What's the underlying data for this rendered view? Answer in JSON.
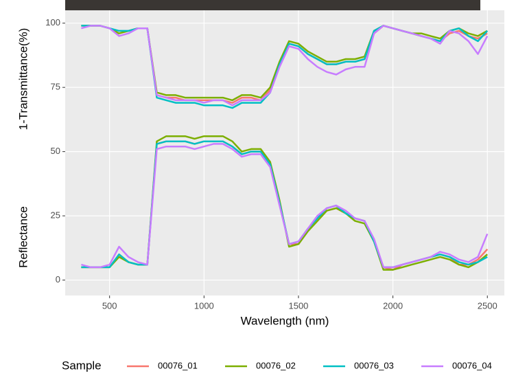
{
  "chart_data": {
    "type": "line",
    "xlabel": "Wavelength (nm)",
    "ylabels": [
      "1-Transmittance(%)",
      "Reflectance"
    ],
    "legend_title": "Sample",
    "legend_position": "bottom",
    "grid": true,
    "xlim": [
      265,
      2590
    ],
    "ylim": [
      -6,
      105
    ],
    "xticks": [
      500,
      1000,
      1500,
      2000,
      2500
    ],
    "yticks": [
      0,
      25,
      50,
      75,
      100
    ],
    "x": [
      350,
      400,
      450,
      500,
      550,
      600,
      650,
      700,
      750,
      800,
      850,
      900,
      950,
      1000,
      1050,
      1100,
      1150,
      1200,
      1250,
      1300,
      1350,
      1400,
      1450,
      1500,
      1550,
      1600,
      1650,
      1700,
      1750,
      1800,
      1850,
      1900,
      1950,
      2000,
      2050,
      2100,
      2150,
      2200,
      2250,
      2300,
      2350,
      2400,
      2450,
      2500
    ],
    "series": [
      {
        "name": "00076_01",
        "color": "#f8766d",
        "transmittance": [
          99,
          99,
          99,
          98,
          96,
          97,
          98,
          98,
          72,
          71,
          71,
          70,
          70,
          70,
          70,
          70,
          69,
          71,
          71,
          70,
          74,
          84,
          92,
          91,
          88,
          86,
          84,
          84,
          85,
          85,
          86,
          96,
          99,
          98,
          97,
          96,
          95,
          94,
          93,
          96,
          97,
          95,
          94,
          96
        ],
        "reflectance": [
          5,
          5,
          5,
          5,
          10,
          7,
          6,
          6,
          53,
          54,
          54,
          54,
          53,
          54,
          54,
          54,
          52,
          49,
          50,
          50,
          45,
          30,
          14,
          14,
          20,
          24,
          27,
          28,
          26,
          24,
          23,
          15,
          5,
          4,
          6,
          7,
          8,
          9,
          10,
          9,
          6,
          6,
          8,
          12
        ]
      },
      {
        "name": "00076_02",
        "color": "#7cae00",
        "transmittance": [
          99,
          99,
          99,
          98,
          96,
          97,
          98,
          98,
          73,
          72,
          72,
          71,
          71,
          71,
          71,
          71,
          70,
          72,
          72,
          71,
          75,
          85,
          93,
          92,
          89,
          87,
          85,
          85,
          86,
          86,
          87,
          97,
          99,
          98,
          97,
          96,
          96,
          95,
          94,
          97,
          98,
          96,
          95,
          97
        ],
        "reflectance": [
          5,
          5,
          5,
          5,
          9,
          7,
          6,
          6,
          54,
          56,
          56,
          56,
          55,
          56,
          56,
          56,
          54,
          50,
          51,
          51,
          46,
          31,
          13,
          14,
          19,
          23,
          27,
          28,
          26,
          23,
          22,
          15,
          4,
          4,
          5,
          6,
          7,
          8,
          9,
          8,
          6,
          5,
          7,
          10
        ]
      },
      {
        "name": "00076_03",
        "color": "#00bfc4",
        "transmittance": [
          99,
          99,
          99,
          98,
          97,
          97,
          98,
          98,
          71,
          70,
          69,
          69,
          69,
          68,
          68,
          68,
          67,
          69,
          69,
          69,
          73,
          84,
          92,
          91,
          88,
          86,
          84,
          84,
          85,
          85,
          86,
          97,
          99,
          98,
          97,
          96,
          95,
          94,
          93,
          97,
          98,
          95,
          93,
          97
        ],
        "reflectance": [
          5,
          5,
          5,
          5,
          10,
          7,
          6,
          6,
          53,
          54,
          54,
          54,
          53,
          54,
          54,
          54,
          52,
          49,
          50,
          50,
          45,
          30,
          14,
          15,
          20,
          24,
          28,
          29,
          26,
          24,
          23,
          15,
          5,
          5,
          6,
          7,
          8,
          9,
          10,
          9,
          7,
          6,
          7,
          9
        ]
      },
      {
        "name": "00076_04",
        "color": "#c77cff",
        "transmittance": [
          98,
          99,
          99,
          98,
          95,
          96,
          98,
          98,
          72,
          71,
          70,
          70,
          70,
          69,
          70,
          70,
          68,
          70,
          70,
          70,
          73,
          83,
          91,
          90,
          86,
          83,
          81,
          80,
          82,
          83,
          83,
          96,
          99,
          98,
          97,
          96,
          95,
          94,
          92,
          97,
          96,
          93,
          88,
          95
        ],
        "reflectance": [
          6,
          5,
          5,
          6,
          13,
          9,
          7,
          6,
          51,
          52,
          52,
          52,
          51,
          52,
          53,
          53,
          51,
          48,
          49,
          49,
          44,
          29,
          14,
          15,
          20,
          25,
          28,
          29,
          27,
          24,
          23,
          16,
          5,
          5,
          6,
          7,
          8,
          9,
          11,
          10,
          8,
          7,
          9,
          18
        ]
      }
    ]
  }
}
